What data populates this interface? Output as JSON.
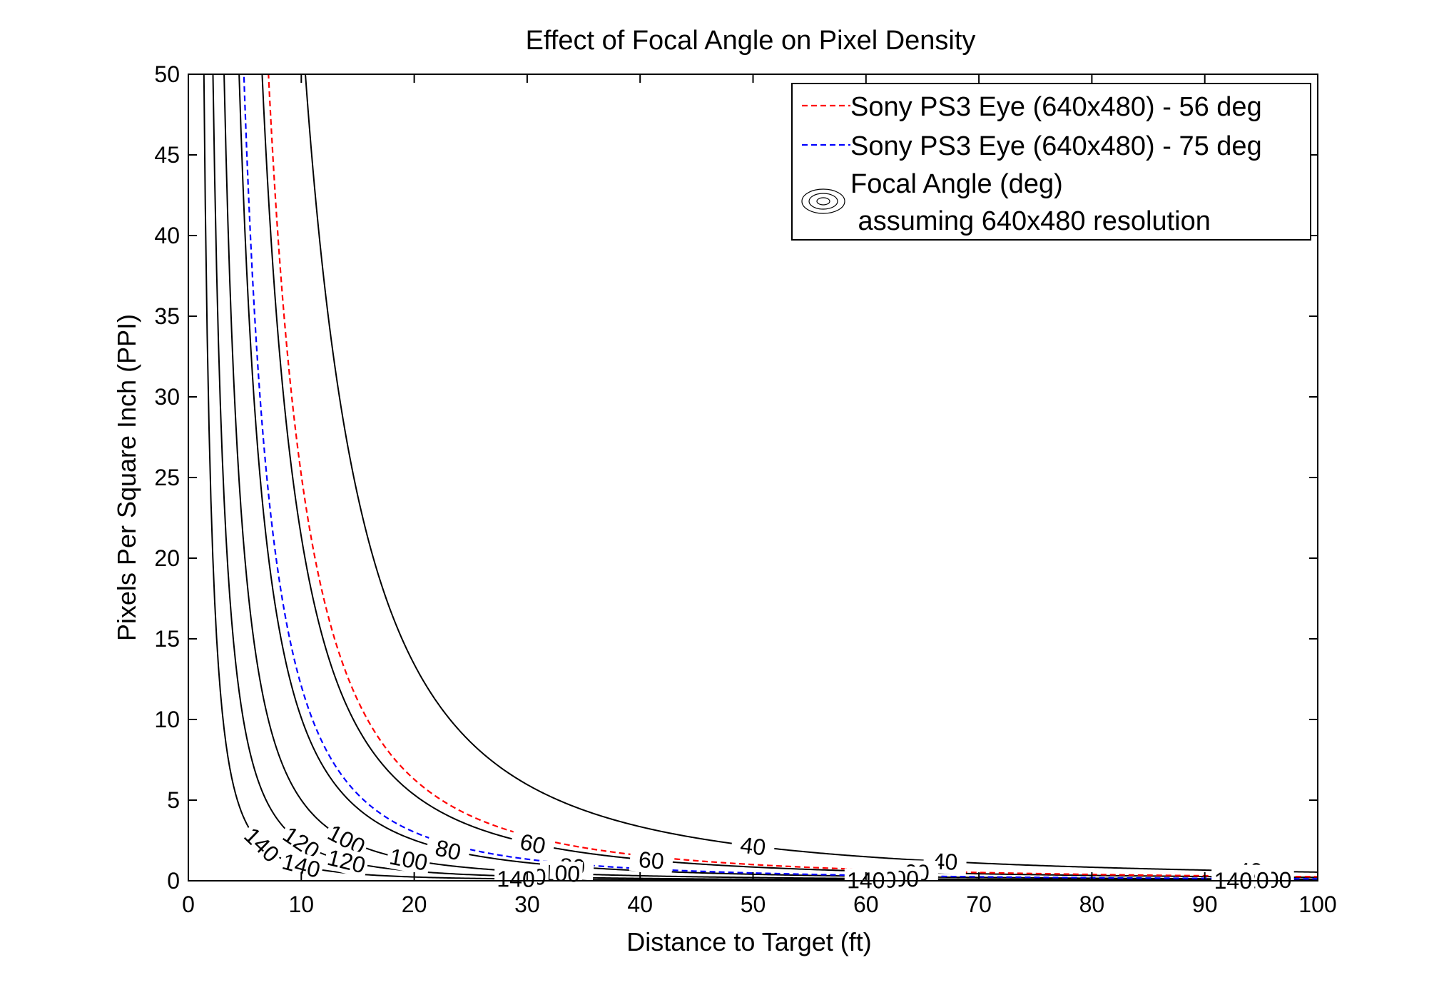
{
  "chart_data": {
    "type": "line",
    "title": "Effect of Focal Angle on Pixel Density",
    "xlabel": "Distance to Target  (ft)",
    "ylabel": "Pixels Per Square Inch  (PPI)",
    "xlim": [
      0,
      100
    ],
    "ylim": [
      0,
      50
    ],
    "xticks": [
      0,
      10,
      20,
      30,
      40,
      50,
      60,
      70,
      80,
      90,
      100
    ],
    "yticks": [
      0,
      5,
      10,
      15,
      20,
      25,
      30,
      35,
      40,
      45,
      50
    ],
    "grid": false,
    "legend_position": "top-right",
    "resolution": [
      640,
      480
    ],
    "legend": [
      {
        "label": "Sony PS3 Eye (640x480) - 56 deg",
        "style": "dashed",
        "color": "#ff0000"
      },
      {
        "label": "Sony PS3 Eye (640x480) - 75 deg",
        "style": "dashed",
        "color": "#0000ff"
      },
      {
        "label": "Focal Angle (deg)",
        "label2": " assuming 640x480 resolution",
        "style": "contour",
        "color": "#000000"
      }
    ],
    "series": [
      {
        "name": "Sony PS3 Eye (640x480) - 56 deg",
        "angle": 56,
        "color": "#ff0000",
        "style": "dashed"
      },
      {
        "name": "Sony PS3 Eye (640x480) - 75 deg",
        "angle": 75,
        "color": "#0000ff",
        "style": "dashed"
      }
    ],
    "contours": [
      {
        "level": 40,
        "labels": [
          {
            "x": 50,
            "text": "40"
          },
          {
            "x": 67,
            "text": "40"
          },
          {
            "x": 94,
            "text": "40"
          }
        ]
      },
      {
        "level": 60,
        "labels": [
          {
            "x": 30.5,
            "text": "60"
          },
          {
            "x": 41,
            "text": "60"
          },
          {
            "x": 64.5,
            "text": "60"
          },
          {
            "x": 95,
            "text": "60"
          }
        ]
      },
      {
        "level": 80,
        "labels": [
          {
            "x": 23,
            "text": "80"
          },
          {
            "x": 34,
            "text": "80"
          },
          {
            "x": 61,
            "text": "80"
          },
          {
            "x": 92.5,
            "text": "80"
          }
        ]
      },
      {
        "level": 100,
        "labels": [
          {
            "x": 14,
            "text": "100"
          },
          {
            "x": 19.5,
            "text": "100"
          },
          {
            "x": 33,
            "text": "100"
          },
          {
            "x": 63,
            "text": "100"
          },
          {
            "x": 96,
            "text": "100"
          }
        ]
      },
      {
        "level": 120,
        "labels": [
          {
            "x": 10,
            "text": "120"
          },
          {
            "x": 14,
            "text": "120"
          },
          {
            "x": 30,
            "text": "120"
          },
          {
            "x": 61,
            "text": "120"
          },
          {
            "x": 94,
            "text": "120"
          }
        ]
      },
      {
        "level": 140,
        "labels": [
          {
            "x": 6.5,
            "text": "140"
          },
          {
            "x": 10,
            "text": "140"
          },
          {
            "x": 29,
            "text": "140"
          },
          {
            "x": 60,
            "text": "140"
          },
          {
            "x": 92.5,
            "text": "140"
          }
        ]
      }
    ]
  }
}
